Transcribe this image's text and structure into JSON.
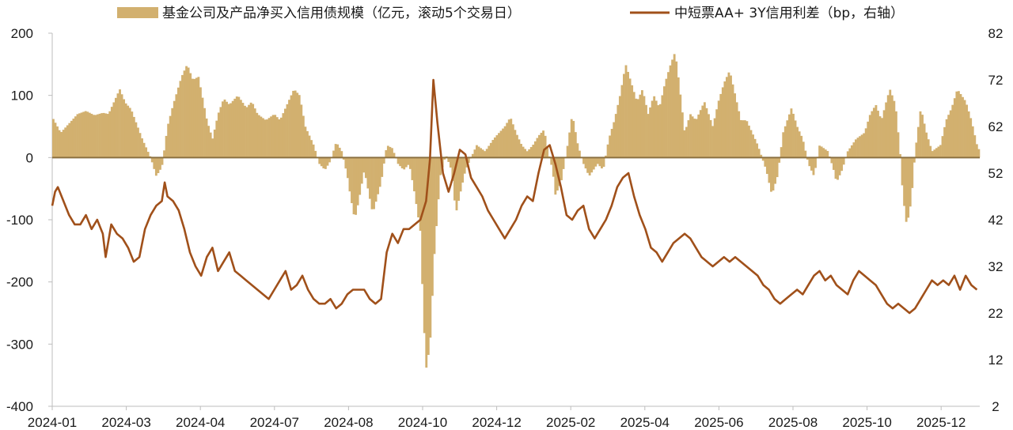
{
  "chart_data": {
    "type": "bar+line",
    "legend": {
      "bar_label": "基金公司及产品净买入信用债规模（亿元，滚动5个交易日）",
      "line_label": "中短票AA+ 3Y信用利差（bp，右轴）"
    },
    "colors": {
      "bar": "#d2b06f",
      "line": "#a0501a",
      "zero_line": "#8b7040"
    },
    "x_tick_labels": [
      "2024-01",
      "2024-03",
      "2024-04",
      "2024-07",
      "2024-08",
      "2024-10",
      "2024-12",
      "2025-02",
      "2025-04",
      "2025-06",
      "2025-08",
      "2025-10",
      "2025-12"
    ],
    "left_axis": {
      "ticks": [
        200,
        100,
        0,
        -100,
        -200,
        -300,
        -400
      ],
      "ylim": [
        -400,
        200
      ]
    },
    "right_axis": {
      "ticks": [
        82,
        72,
        62,
        52,
        42,
        32,
        22,
        12,
        2
      ],
      "ylim": [
        2,
        82
      ]
    },
    "bar_series": {
      "name": "基金公司及产品净买入信用债规模（亿元，滚动5个交易日）",
      "points": [
        [
          0,
          65
        ],
        [
          0.15,
          40
        ],
        [
          0.3,
          55
        ],
        [
          0.45,
          70
        ],
        [
          0.6,
          75
        ],
        [
          0.75,
          68
        ],
        [
          0.9,
          72
        ],
        [
          1.0,
          70
        ],
        [
          1.1,
          90
        ],
        [
          1.2,
          110
        ],
        [
          1.3,
          88
        ],
        [
          1.4,
          78
        ],
        [
          1.6,
          30
        ],
        [
          1.75,
          0
        ],
        [
          1.85,
          -30
        ],
        [
          1.95,
          -15
        ],
        [
          2.05,
          50
        ],
        [
          2.15,
          85
        ],
        [
          2.3,
          130
        ],
        [
          2.4,
          150
        ],
        [
          2.5,
          125
        ],
        [
          2.6,
          130
        ],
        [
          2.75,
          60
        ],
        [
          2.85,
          30
        ],
        [
          2.95,
          70
        ],
        [
          3.05,
          95
        ],
        [
          3.15,
          85
        ],
        [
          3.3,
          100
        ],
        [
          3.45,
          80
        ],
        [
          3.55,
          90
        ],
        [
          3.65,
          70
        ],
        [
          3.8,
          60
        ],
        [
          3.95,
          70
        ],
        [
          4.05,
          60
        ],
        [
          4.15,
          80
        ],
        [
          4.3,
          110
        ],
        [
          4.4,
          100
        ],
        [
          4.5,
          50
        ],
        [
          4.65,
          20
        ],
        [
          4.75,
          -10
        ],
        [
          4.85,
          -20
        ],
        [
          4.95,
          -5
        ],
        [
          5.05,
          25
        ],
        [
          5.15,
          10
        ],
        [
          5.25,
          -30
        ],
        [
          5.3,
          -60
        ],
        [
          5.38,
          -100
        ],
        [
          5.45,
          -70
        ],
        [
          5.55,
          -20
        ],
        [
          5.7,
          -90
        ],
        [
          5.85,
          -40
        ],
        [
          5.95,
          20
        ],
        [
          6.05,
          15
        ],
        [
          6.15,
          -10
        ],
        [
          6.25,
          -20
        ],
        [
          6.35,
          -10
        ],
        [
          6.45,
          -60
        ],
        [
          6.55,
          -120
        ],
        [
          6.6,
          -250
        ],
        [
          6.65,
          -340
        ],
        [
          6.72,
          -300
        ],
        [
          6.8,
          -150
        ],
        [
          6.9,
          -30
        ],
        [
          7.0,
          5
        ],
        [
          7.1,
          -20
        ],
        [
          7.18,
          -90
        ],
        [
          7.25,
          -60
        ],
        [
          7.35,
          -20
        ],
        [
          7.45,
          0
        ],
        [
          7.55,
          20
        ],
        [
          7.7,
          10
        ],
        [
          7.85,
          30
        ],
        [
          7.95,
          40
        ],
        [
          8.05,
          50
        ],
        [
          8.15,
          65
        ],
        [
          8.25,
          40
        ],
        [
          8.35,
          20
        ],
        [
          8.45,
          10
        ],
        [
          8.55,
          20
        ],
        [
          8.65,
          35
        ],
        [
          8.75,
          45
        ],
        [
          8.82,
          10
        ],
        [
          8.9,
          -20
        ],
        [
          8.95,
          -60
        ],
        [
          9.05,
          -40
        ],
        [
          9.15,
          10
        ],
        [
          9.25,
          70
        ],
        [
          9.35,
          20
        ],
        [
          9.45,
          -10
        ],
        [
          9.55,
          -30
        ],
        [
          9.7,
          -10
        ],
        [
          9.8,
          -20
        ],
        [
          9.9,
          30
        ],
        [
          10.0,
          60
        ],
        [
          10.1,
          100
        ],
        [
          10.2,
          150
        ],
        [
          10.3,
          120
        ],
        [
          10.4,
          90
        ],
        [
          10.5,
          110
        ],
        [
          10.6,
          70
        ],
        [
          10.7,
          100
        ],
        [
          10.8,
          80
        ],
        [
          10.9,
          120
        ],
        [
          11.0,
          150
        ],
        [
          11.08,
          170
        ],
        [
          11.15,
          120
        ],
        [
          11.25,
          40
        ],
        [
          11.35,
          70
        ],
        [
          11.45,
          60
        ],
        [
          11.6,
          90
        ],
        [
          11.75,
          50
        ],
        [
          11.85,
          90
        ],
        [
          11.95,
          120
        ],
        [
          12.05,
          140
        ],
        [
          12.15,
          100
        ],
        [
          12.25,
          60
        ],
        [
          12.35,
          60
        ],
        [
          12.45,
          40
        ],
        [
          12.55,
          20
        ],
        [
          12.7,
          -20
        ],
        [
          12.8,
          -60
        ],
        [
          12.9,
          -30
        ],
        [
          13.0,
          40
        ],
        [
          13.15,
          80
        ],
        [
          13.25,
          50
        ],
        [
          13.35,
          30
        ],
        [
          13.45,
          -10
        ],
        [
          13.55,
          -30
        ],
        [
          13.65,
          20
        ],
        [
          13.8,
          10
        ],
        [
          13.9,
          -20
        ],
        [
          13.95,
          -40
        ],
        [
          14.05,
          -20
        ],
        [
          14.15,
          10
        ],
        [
          14.3,
          30
        ],
        [
          14.45,
          40
        ],
        [
          14.55,
          70
        ],
        [
          14.65,
          85
        ],
        [
          14.75,
          60
        ],
        [
          14.85,
          95
        ],
        [
          14.9,
          110
        ],
        [
          15.0,
          85
        ],
        [
          15.08,
          10
        ],
        [
          15.13,
          -60
        ],
        [
          15.2,
          -110
        ],
        [
          15.28,
          -70
        ],
        [
          15.35,
          10
        ],
        [
          15.45,
          80
        ],
        [
          15.55,
          40
        ],
        [
          15.65,
          10
        ],
        [
          15.8,
          20
        ],
        [
          15.9,
          60
        ],
        [
          16.0,
          80
        ],
        [
          16.1,
          110
        ],
        [
          16.25,
          90
        ],
        [
          16.35,
          60
        ],
        [
          16.45,
          20
        ],
        [
          16.5,
          10
        ]
      ]
    },
    "line_series": {
      "name": "中短票AA+ 3Y信用利差（bp，右轴）",
      "points": [
        [
          0,
          45
        ],
        [
          0.05,
          48
        ],
        [
          0.1,
          49
        ],
        [
          0.2,
          46
        ],
        [
          0.3,
          43
        ],
        [
          0.4,
          41
        ],
        [
          0.5,
          41
        ],
        [
          0.6,
          43
        ],
        [
          0.7,
          40
        ],
        [
          0.8,
          42
        ],
        [
          0.9,
          39
        ],
        [
          0.95,
          34
        ],
        [
          1.05,
          41
        ],
        [
          1.15,
          39
        ],
        [
          1.25,
          38
        ],
        [
          1.35,
          36
        ],
        [
          1.45,
          33
        ],
        [
          1.55,
          34
        ],
        [
          1.65,
          40
        ],
        [
          1.75,
          43
        ],
        [
          1.85,
          45
        ],
        [
          1.95,
          46
        ],
        [
          2.0,
          50
        ],
        [
          2.05,
          47
        ],
        [
          2.15,
          46
        ],
        [
          2.25,
          44
        ],
        [
          2.35,
          40
        ],
        [
          2.45,
          35
        ],
        [
          2.55,
          32
        ],
        [
          2.65,
          30
        ],
        [
          2.75,
          34
        ],
        [
          2.85,
          36
        ],
        [
          2.95,
          31
        ],
        [
          3.05,
          33
        ],
        [
          3.15,
          35
        ],
        [
          3.25,
          31
        ],
        [
          3.35,
          30
        ],
        [
          3.45,
          29
        ],
        [
          3.55,
          28
        ],
        [
          3.65,
          27
        ],
        [
          3.75,
          26
        ],
        [
          3.85,
          25
        ],
        [
          3.95,
          27
        ],
        [
          4.05,
          29
        ],
        [
          4.15,
          31
        ],
        [
          4.25,
          27
        ],
        [
          4.35,
          28
        ],
        [
          4.45,
          30
        ],
        [
          4.55,
          27
        ],
        [
          4.65,
          25
        ],
        [
          4.75,
          24
        ],
        [
          4.85,
          24
        ],
        [
          4.95,
          25
        ],
        [
          5.05,
          23
        ],
        [
          5.15,
          24
        ],
        [
          5.25,
          26
        ],
        [
          5.35,
          27
        ],
        [
          5.45,
          27
        ],
        [
          5.55,
          27
        ],
        [
          5.65,
          25
        ],
        [
          5.75,
          24
        ],
        [
          5.85,
          25
        ],
        [
          5.95,
          35
        ],
        [
          6.05,
          39
        ],
        [
          6.15,
          37
        ],
        [
          6.25,
          40
        ],
        [
          6.35,
          40
        ],
        [
          6.45,
          41
        ],
        [
          6.55,
          42
        ],
        [
          6.65,
          46
        ],
        [
          6.72,
          55
        ],
        [
          6.78,
          72
        ],
        [
          6.85,
          63
        ],
        [
          6.95,
          52
        ],
        [
          7.05,
          48
        ],
        [
          7.15,
          52
        ],
        [
          7.25,
          57
        ],
        [
          7.35,
          56
        ],
        [
          7.45,
          51
        ],
        [
          7.55,
          49
        ],
        [
          7.65,
          47
        ],
        [
          7.75,
          44
        ],
        [
          7.85,
          42
        ],
        [
          7.95,
          40
        ],
        [
          8.05,
          38
        ],
        [
          8.15,
          40
        ],
        [
          8.25,
          42
        ],
        [
          8.35,
          45
        ],
        [
          8.45,
          47
        ],
        [
          8.55,
          46
        ],
        [
          8.65,
          52
        ],
        [
          8.75,
          57
        ],
        [
          8.85,
          58
        ],
        [
          8.95,
          54
        ],
        [
          9.05,
          49
        ],
        [
          9.15,
          43
        ],
        [
          9.25,
          42
        ],
        [
          9.35,
          44
        ],
        [
          9.45,
          45
        ],
        [
          9.55,
          40
        ],
        [
          9.65,
          38
        ],
        [
          9.75,
          40
        ],
        [
          9.85,
          42
        ],
        [
          9.95,
          45
        ],
        [
          10.05,
          49
        ],
        [
          10.15,
          51
        ],
        [
          10.25,
          52
        ],
        [
          10.35,
          47
        ],
        [
          10.45,
          43
        ],
        [
          10.55,
          40
        ],
        [
          10.65,
          36
        ],
        [
          10.75,
          35
        ],
        [
          10.85,
          33
        ],
        [
          10.95,
          35
        ],
        [
          11.05,
          37
        ],
        [
          11.15,
          38
        ],
        [
          11.25,
          39
        ],
        [
          11.35,
          38
        ],
        [
          11.45,
          36
        ],
        [
          11.55,
          34
        ],
        [
          11.65,
          33
        ],
        [
          11.75,
          32
        ],
        [
          11.85,
          33
        ],
        [
          11.95,
          34
        ],
        [
          12.05,
          33
        ],
        [
          12.15,
          34
        ],
        [
          12.25,
          33
        ],
        [
          12.35,
          32
        ],
        [
          12.45,
          31
        ],
        [
          12.55,
          30
        ],
        [
          12.65,
          28
        ],
        [
          12.75,
          27
        ],
        [
          12.85,
          25
        ],
        [
          12.95,
          24
        ],
        [
          13.05,
          25
        ],
        [
          13.15,
          26
        ],
        [
          13.25,
          27
        ],
        [
          13.35,
          26
        ],
        [
          13.45,
          28
        ],
        [
          13.55,
          30
        ],
        [
          13.65,
          31
        ],
        [
          13.75,
          29
        ],
        [
          13.85,
          30
        ],
        [
          13.95,
          28
        ],
        [
          14.05,
          27
        ],
        [
          14.15,
          26
        ],
        [
          14.25,
          29
        ],
        [
          14.35,
          31
        ],
        [
          14.45,
          30
        ],
        [
          14.55,
          29
        ],
        [
          14.65,
          28
        ],
        [
          14.75,
          26
        ],
        [
          14.85,
          24
        ],
        [
          14.95,
          23
        ],
        [
          15.05,
          24
        ],
        [
          15.15,
          23
        ],
        [
          15.25,
          22
        ],
        [
          15.35,
          23
        ],
        [
          15.45,
          25
        ],
        [
          15.55,
          27
        ],
        [
          15.65,
          29
        ],
        [
          15.75,
          28
        ],
        [
          15.85,
          29
        ],
        [
          15.95,
          28
        ],
        [
          16.05,
          30
        ],
        [
          16.15,
          27
        ],
        [
          16.25,
          30
        ],
        [
          16.35,
          28
        ],
        [
          16.45,
          27
        ]
      ]
    }
  }
}
